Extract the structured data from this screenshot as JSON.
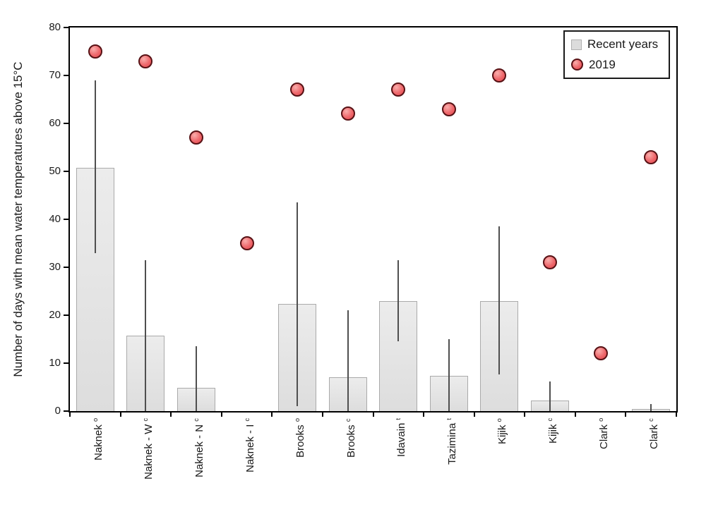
{
  "chart_data": {
    "type": "bar",
    "title": "",
    "xlabel": "",
    "ylabel": "Number of days with mean water temperatures above 15°C",
    "ylim": [
      0,
      80
    ],
    "yticks": [
      0,
      10,
      20,
      30,
      40,
      50,
      60,
      70,
      80
    ],
    "grid": false,
    "legend_position": "top-right",
    "categories": [
      {
        "name": "Naknek",
        "sup": "o"
      },
      {
        "name": "Naknek - W",
        "sup": "c"
      },
      {
        "name": "Naknek - N",
        "sup": "c"
      },
      {
        "name": "Naknek - I",
        "sup": "c"
      },
      {
        "name": "Brooks",
        "sup": "o"
      },
      {
        "name": "Brooks",
        "sup": "c"
      },
      {
        "name": "Idavain",
        "sup": "t"
      },
      {
        "name": "Tazimina",
        "sup": "t"
      },
      {
        "name": "Kijik",
        "sup": "o"
      },
      {
        "name": "Kijik",
        "sup": "c"
      },
      {
        "name": "Clark",
        "sup": "o"
      },
      {
        "name": "Clark",
        "sup": "c"
      }
    ],
    "series": [
      {
        "name": "Recent years",
        "type": "bar",
        "values": [
          50.8,
          15.7,
          4.8,
          0,
          22.3,
          7.0,
          23.0,
          7.4,
          23.0,
          2.2,
          0,
          0.5
        ],
        "error_low": [
          33,
          0,
          0,
          null,
          1,
          0,
          14.5,
          0,
          7.7,
          0,
          null,
          0
        ],
        "error_high": [
          69,
          31.5,
          13.5,
          null,
          43.5,
          21,
          31.5,
          15,
          38.5,
          6.2,
          null,
          1.5
        ]
      },
      {
        "name": "2019",
        "type": "scatter",
        "values": [
          75,
          73,
          57,
          35,
          67,
          62,
          67,
          63,
          70,
          31,
          12,
          53
        ]
      }
    ],
    "colors": {
      "bar_fill": "#e4e4e4",
      "bar_border": "#aaaaaa",
      "error_bar": "#4f4f4f",
      "dot_fill": "#ee686c",
      "dot_border": "#571114",
      "axis": "#000000"
    }
  },
  "legend": {
    "items": [
      {
        "label": "Recent years"
      },
      {
        "label": "2019"
      }
    ]
  }
}
